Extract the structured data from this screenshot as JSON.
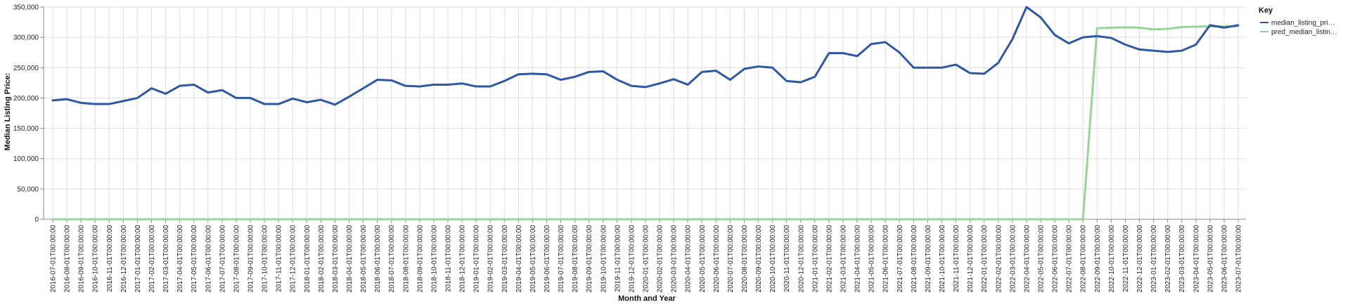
{
  "chart_data": {
    "type": "line",
    "xlabel": "Month and Year",
    "ylabel": "Median Listing Price:",
    "ylim": [
      0,
      350000
    ],
    "y_ticks": [
      "0",
      "50,000",
      "100,000",
      "150,000",
      "200,000",
      "250,000",
      "300,000",
      "350,000"
    ],
    "grid": true,
    "legend": {
      "title": "Key",
      "position": "top-right"
    },
    "x": [
      "2016-07-01T00:00:00",
      "2016-08-01T00:00:00",
      "2016-09-01T00:00:00",
      "2016-10-01T00:00:00",
      "2016-11-01T00:00:00",
      "2016-12-01T00:00:00",
      "2017-01-01T00:00:00",
      "2017-02-01T00:00:00",
      "2017-03-01T00:00:00",
      "2017-04-01T00:00:00",
      "2017-05-01T00:00:00",
      "2017-06-01T00:00:00",
      "2017-07-01T00:00:00",
      "2017-08-01T00:00:00",
      "2017-09-01T00:00:00",
      "2017-10-01T00:00:00",
      "2017-11-01T00:00:00",
      "2017-12-01T00:00:00",
      "2018-01-01T00:00:00",
      "2018-02-01T00:00:00",
      "2018-03-01T00:00:00",
      "2018-04-01T00:00:00",
      "2018-05-01T00:00:00",
      "2018-06-01T00:00:00",
      "2018-07-01T00:00:00",
      "2018-08-01T00:00:00",
      "2018-09-01T00:00:00",
      "2018-10-01T00:00:00",
      "2018-11-01T00:00:00",
      "2018-12-01T00:00:00",
      "2019-01-01T00:00:00",
      "2019-02-01T00:00:00",
      "2019-03-01T00:00:00",
      "2019-04-01T00:00:00",
      "2019-05-01T00:00:00",
      "2019-06-01T00:00:00",
      "2019-07-01T00:00:00",
      "2019-08-01T00:00:00",
      "2019-09-01T00:00:00",
      "2019-10-01T00:00:00",
      "2019-11-01T00:00:00",
      "2019-12-01T00:00:00",
      "2020-01-01T00:00:00",
      "2020-02-01T00:00:00",
      "2020-03-01T00:00:00",
      "2020-04-01T00:00:00",
      "2020-05-01T00:00:00",
      "2020-06-01T00:00:00",
      "2020-07-01T00:00:00",
      "2020-08-01T00:00:00",
      "2020-09-01T00:00:00",
      "2020-10-01T00:00:00",
      "2020-11-01T00:00:00",
      "2020-12-01T00:00:00",
      "2021-01-01T00:00:00",
      "2021-02-01T00:00:00",
      "2021-03-01T00:00:00",
      "2021-04-01T00:00:00",
      "2021-05-01T00:00:00",
      "2021-06-01T00:00:00",
      "2021-07-01T00:00:00",
      "2021-08-01T00:00:00",
      "2021-09-01T00:00:00",
      "2021-10-01T00:00:00",
      "2021-11-01T00:00:00",
      "2021-12-01T00:00:00",
      "2022-01-01T00:00:00",
      "2022-02-01T00:00:00",
      "2022-03-01T00:00:00",
      "2022-04-01T00:00:00",
      "2022-05-01T00:00:00",
      "2022-06-01T00:00:00",
      "2022-07-01T00:00:00",
      "2022-08-01T00:00:00",
      "2022-09-01T00:00:00",
      "2022-10-01T00:00:00",
      "2022-11-01T00:00:00",
      "2022-12-01T00:00:00",
      "2023-01-01T00:00:00",
      "2023-02-01T00:00:00",
      "2023-03-01T00:00:00",
      "2023-04-01T00:00:00",
      "2023-05-01T00:00:00",
      "2023-06-01T00:00:00",
      "2023-07-01T00:00:00"
    ],
    "series": [
      {
        "name": "median_listing_pri…",
        "color": "#2e57a4",
        "values": [
          196000,
          198000,
          192000,
          190000,
          190000,
          195000,
          200000,
          216000,
          207000,
          220000,
          222000,
          209000,
          213000,
          200000,
          200000,
          190000,
          190000,
          199000,
          193000,
          197000,
          189000,
          202000,
          216000,
          230000,
          229000,
          220000,
          219000,
          222000,
          222000,
          224000,
          219000,
          219000,
          228000,
          239000,
          240000,
          239000,
          230000,
          235000,
          243000,
          244000,
          230000,
          220000,
          218000,
          224000,
          231000,
          222000,
          243000,
          245000,
          230000,
          248000,
          252000,
          250000,
          228000,
          226000,
          235000,
          274000,
          274000,
          269000,
          289000,
          292000,
          275000,
          250000,
          250000,
          250000,
          255000,
          241000,
          240000,
          258000,
          297000,
          350000,
          333000,
          304000,
          290000,
          300000,
          302000,
          299000,
          288000,
          280000,
          278000,
          276000,
          278000,
          288000,
          320000,
          316000,
          320000
        ]
      },
      {
        "name": "pred_median_listin…",
        "color": "#98d498",
        "values": [
          0,
          0,
          0,
          0,
          0,
          0,
          0,
          0,
          0,
          0,
          0,
          0,
          0,
          0,
          0,
          0,
          0,
          0,
          0,
          0,
          0,
          0,
          0,
          0,
          0,
          0,
          0,
          0,
          0,
          0,
          0,
          0,
          0,
          0,
          0,
          0,
          0,
          0,
          0,
          0,
          0,
          0,
          0,
          0,
          0,
          0,
          0,
          0,
          0,
          0,
          0,
          0,
          0,
          0,
          0,
          0,
          0,
          0,
          0,
          0,
          0,
          0,
          0,
          0,
          0,
          0,
          0,
          0,
          0,
          0,
          0,
          0,
          0,
          0,
          315000,
          316000,
          316500,
          316000,
          313000,
          314000,
          317000,
          317500,
          318000,
          318000,
          318500
        ]
      }
    ]
  }
}
